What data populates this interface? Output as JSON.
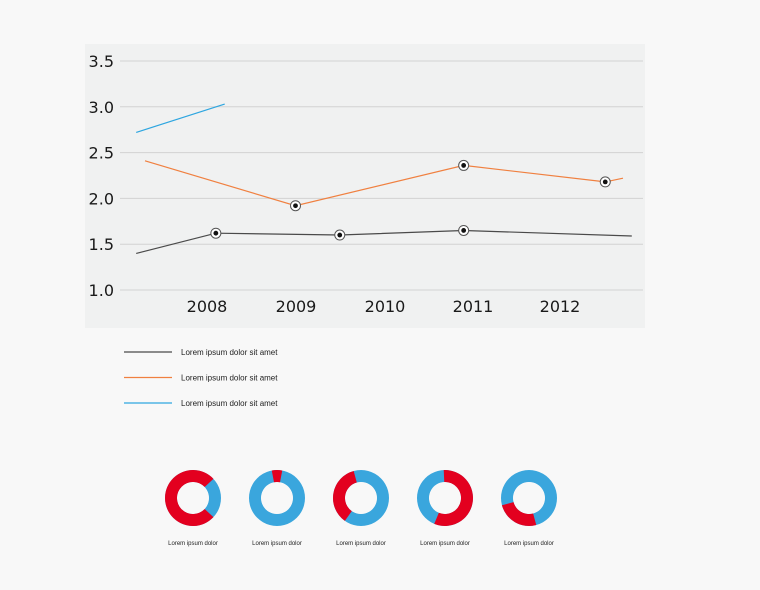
{
  "chart_data": [
    {
      "type": "line",
      "title": "",
      "xlabel": "",
      "ylabel": "",
      "ylim": [
        1.0,
        3.5
      ],
      "y_ticks": [
        "1.0",
        "1.5",
        "2.0",
        "2.5",
        "3.0",
        "3.5"
      ],
      "x_tick_labels": [
        "2008",
        "2009",
        "2010",
        "2011",
        "2012"
      ],
      "grid": "horizontal",
      "series": [
        {
          "name": "Lorem ipsum dolor sit amet",
          "color": "#4a4a4a",
          "points": [
            [
              2007.2,
              1.4
            ],
            [
              2008.1,
              1.62
            ],
            [
              2009.5,
              1.6
            ],
            [
              2010.9,
              1.65
            ],
            [
              2012.8,
              1.59
            ]
          ],
          "marked": [
            1,
            2,
            3
          ]
        },
        {
          "name": "Lorem ipsum dolor sit amet",
          "color": "#f08040",
          "points": [
            [
              2007.3,
              2.41
            ],
            [
              2009.0,
              1.92
            ],
            [
              2010.9,
              2.36
            ],
            [
              2012.5,
              2.18
            ],
            [
              2012.7,
              2.22
            ]
          ],
          "marked": [
            1,
            2,
            3
          ]
        },
        {
          "name": "Lorem ipsum dolor sit amet",
          "color": "#2ea6e0",
          "points": [
            [
              2007.2,
              2.72
            ],
            [
              2008.2,
              3.03
            ]
          ],
          "marked": []
        }
      ],
      "legend": "below"
    },
    {
      "type": "pie",
      "style": "donut",
      "colors": {
        "red": "#e3001f",
        "blue": "#3aa6dd"
      },
      "items": [
        {
          "label": "Lorem ipsum dolor",
          "red_share": 0.76
        },
        {
          "label": "Lorem ipsum dolor",
          "red_share": 0.06
        },
        {
          "label": "Lorem ipsum dolor",
          "red_share": 0.36
        },
        {
          "label": "Lorem ipsum dolor",
          "red_share": 0.57
        },
        {
          "label": "Lorem ipsum dolor",
          "red_share": 0.25
        }
      ]
    }
  ]
}
